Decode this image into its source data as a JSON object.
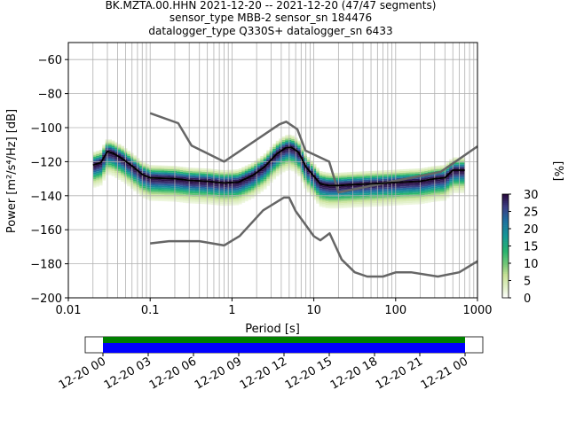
{
  "chart_data": {
    "type": "heatmap",
    "title_lines": [
      "BK.MZTA.00.HHN   2021-12-20 -- 2021-12-20  (47/47 segments)",
      "sensor_type MBB-2 sensor_sn 184476",
      "datalogger_type Q330S+ datalogger_sn 6433"
    ],
    "xlabel": "Period [s]",
    "ylabel": "Power [m²/s⁴/Hz] [dB]",
    "xscale": "log",
    "xlim": [
      0.01,
      1000
    ],
    "ylim": [
      -200,
      -50
    ],
    "x_ticks": [
      {
        "v": 0.01,
        "label": "0.01"
      },
      {
        "v": 0.1,
        "label": "0.1"
      },
      {
        "v": 1,
        "label": "1"
      },
      {
        "v": 10,
        "label": "10"
      },
      {
        "v": 100,
        "label": "100"
      },
      {
        "v": 1000,
        "label": "1000"
      }
    ],
    "y_ticks": [
      {
        "v": -60,
        "label": "−60"
      },
      {
        "v": -80,
        "label": "−80"
      },
      {
        "v": -100,
        "label": "−100"
      },
      {
        "v": -120,
        "label": "−120"
      },
      {
        "v": -140,
        "label": "−140"
      },
      {
        "v": -160,
        "label": "−160"
      },
      {
        "v": -180,
        "label": "−180"
      },
      {
        "v": -200,
        "label": "−200"
      }
    ],
    "grid": true,
    "colorbar": {
      "label": "[%]",
      "range": [
        0,
        30
      ],
      "ticks": [
        {
          "v": 0,
          "label": "0"
        },
        {
          "v": 5,
          "label": "5"
        },
        {
          "v": 10,
          "label": "10"
        },
        {
          "v": 15,
          "label": "15"
        },
        {
          "v": 20,
          "label": "20"
        },
        {
          "v": 25,
          "label": "25"
        },
        {
          "v": 30,
          "label": "30"
        }
      ],
      "colormap": "pqlx"
    },
    "noise_models": {
      "color": "#666666",
      "high": {
        "x": [
          0.1,
          0.22,
          0.32,
          0.8,
          3.8,
          4.6,
          6.3,
          7.9,
          15.4,
          20,
          354.8,
          1000
        ],
        "y": [
          -91.5,
          -97.4,
          -110.5,
          -120,
          -98,
          -96.5,
          -101,
          -113.5,
          -120,
          -138,
          -126,
          -111
        ]
      },
      "low": {
        "x": [
          0.1,
          0.17,
          0.4,
          0.8,
          1.24,
          2.4,
          4.3,
          5,
          6,
          10,
          12,
          15.6,
          21.9,
          31.6,
          45,
          70,
          101,
          154,
          328,
          600,
          1000
        ],
        "y": [
          -168,
          -166.7,
          -166.7,
          -169.2,
          -163.7,
          -148.6,
          -141.1,
          -141.1,
          -149,
          -163.8,
          -166.2,
          -162.1,
          -177.5,
          -185,
          -187.5,
          -187.5,
          -185,
          -185,
          -187.5,
          -185,
          -178.5
        ]
      }
    },
    "mode_line": {
      "color": "#000000",
      "x": [
        0.02,
        0.025,
        0.03,
        0.035,
        0.045,
        0.06,
        0.08,
        0.1,
        0.2,
        0.3,
        0.5,
        0.8,
        1.2,
        1.8,
        2.5,
        3.5,
        4.5,
        5.3,
        6.5,
        8,
        10,
        12,
        15,
        20,
        30,
        50,
        80,
        120,
        200,
        300,
        400,
        500,
        700
      ],
      "y": [
        -122,
        -120.5,
        -114,
        -115,
        -118,
        -122.5,
        -127.5,
        -129.5,
        -130,
        -131,
        -131.5,
        -132.5,
        -132,
        -128,
        -123,
        -115.5,
        -112,
        -111.5,
        -114.5,
        -123,
        -128.5,
        -133,
        -134,
        -134,
        -133.5,
        -133,
        -132.5,
        -132,
        -131.5,
        -130,
        -129.5,
        -125,
        -125
      ]
    },
    "time_axis": {
      "ticks": [
        "12-20 00",
        "12-20 03",
        "12-20 06",
        "12-20 09",
        "12-20 12",
        "12-20 15",
        "12-20 18",
        "12-20 21",
        "12-21 00"
      ],
      "coverage_color": "#0000ff",
      "data_color": "#008000",
      "coverage_fraction": 1.0
    }
  }
}
